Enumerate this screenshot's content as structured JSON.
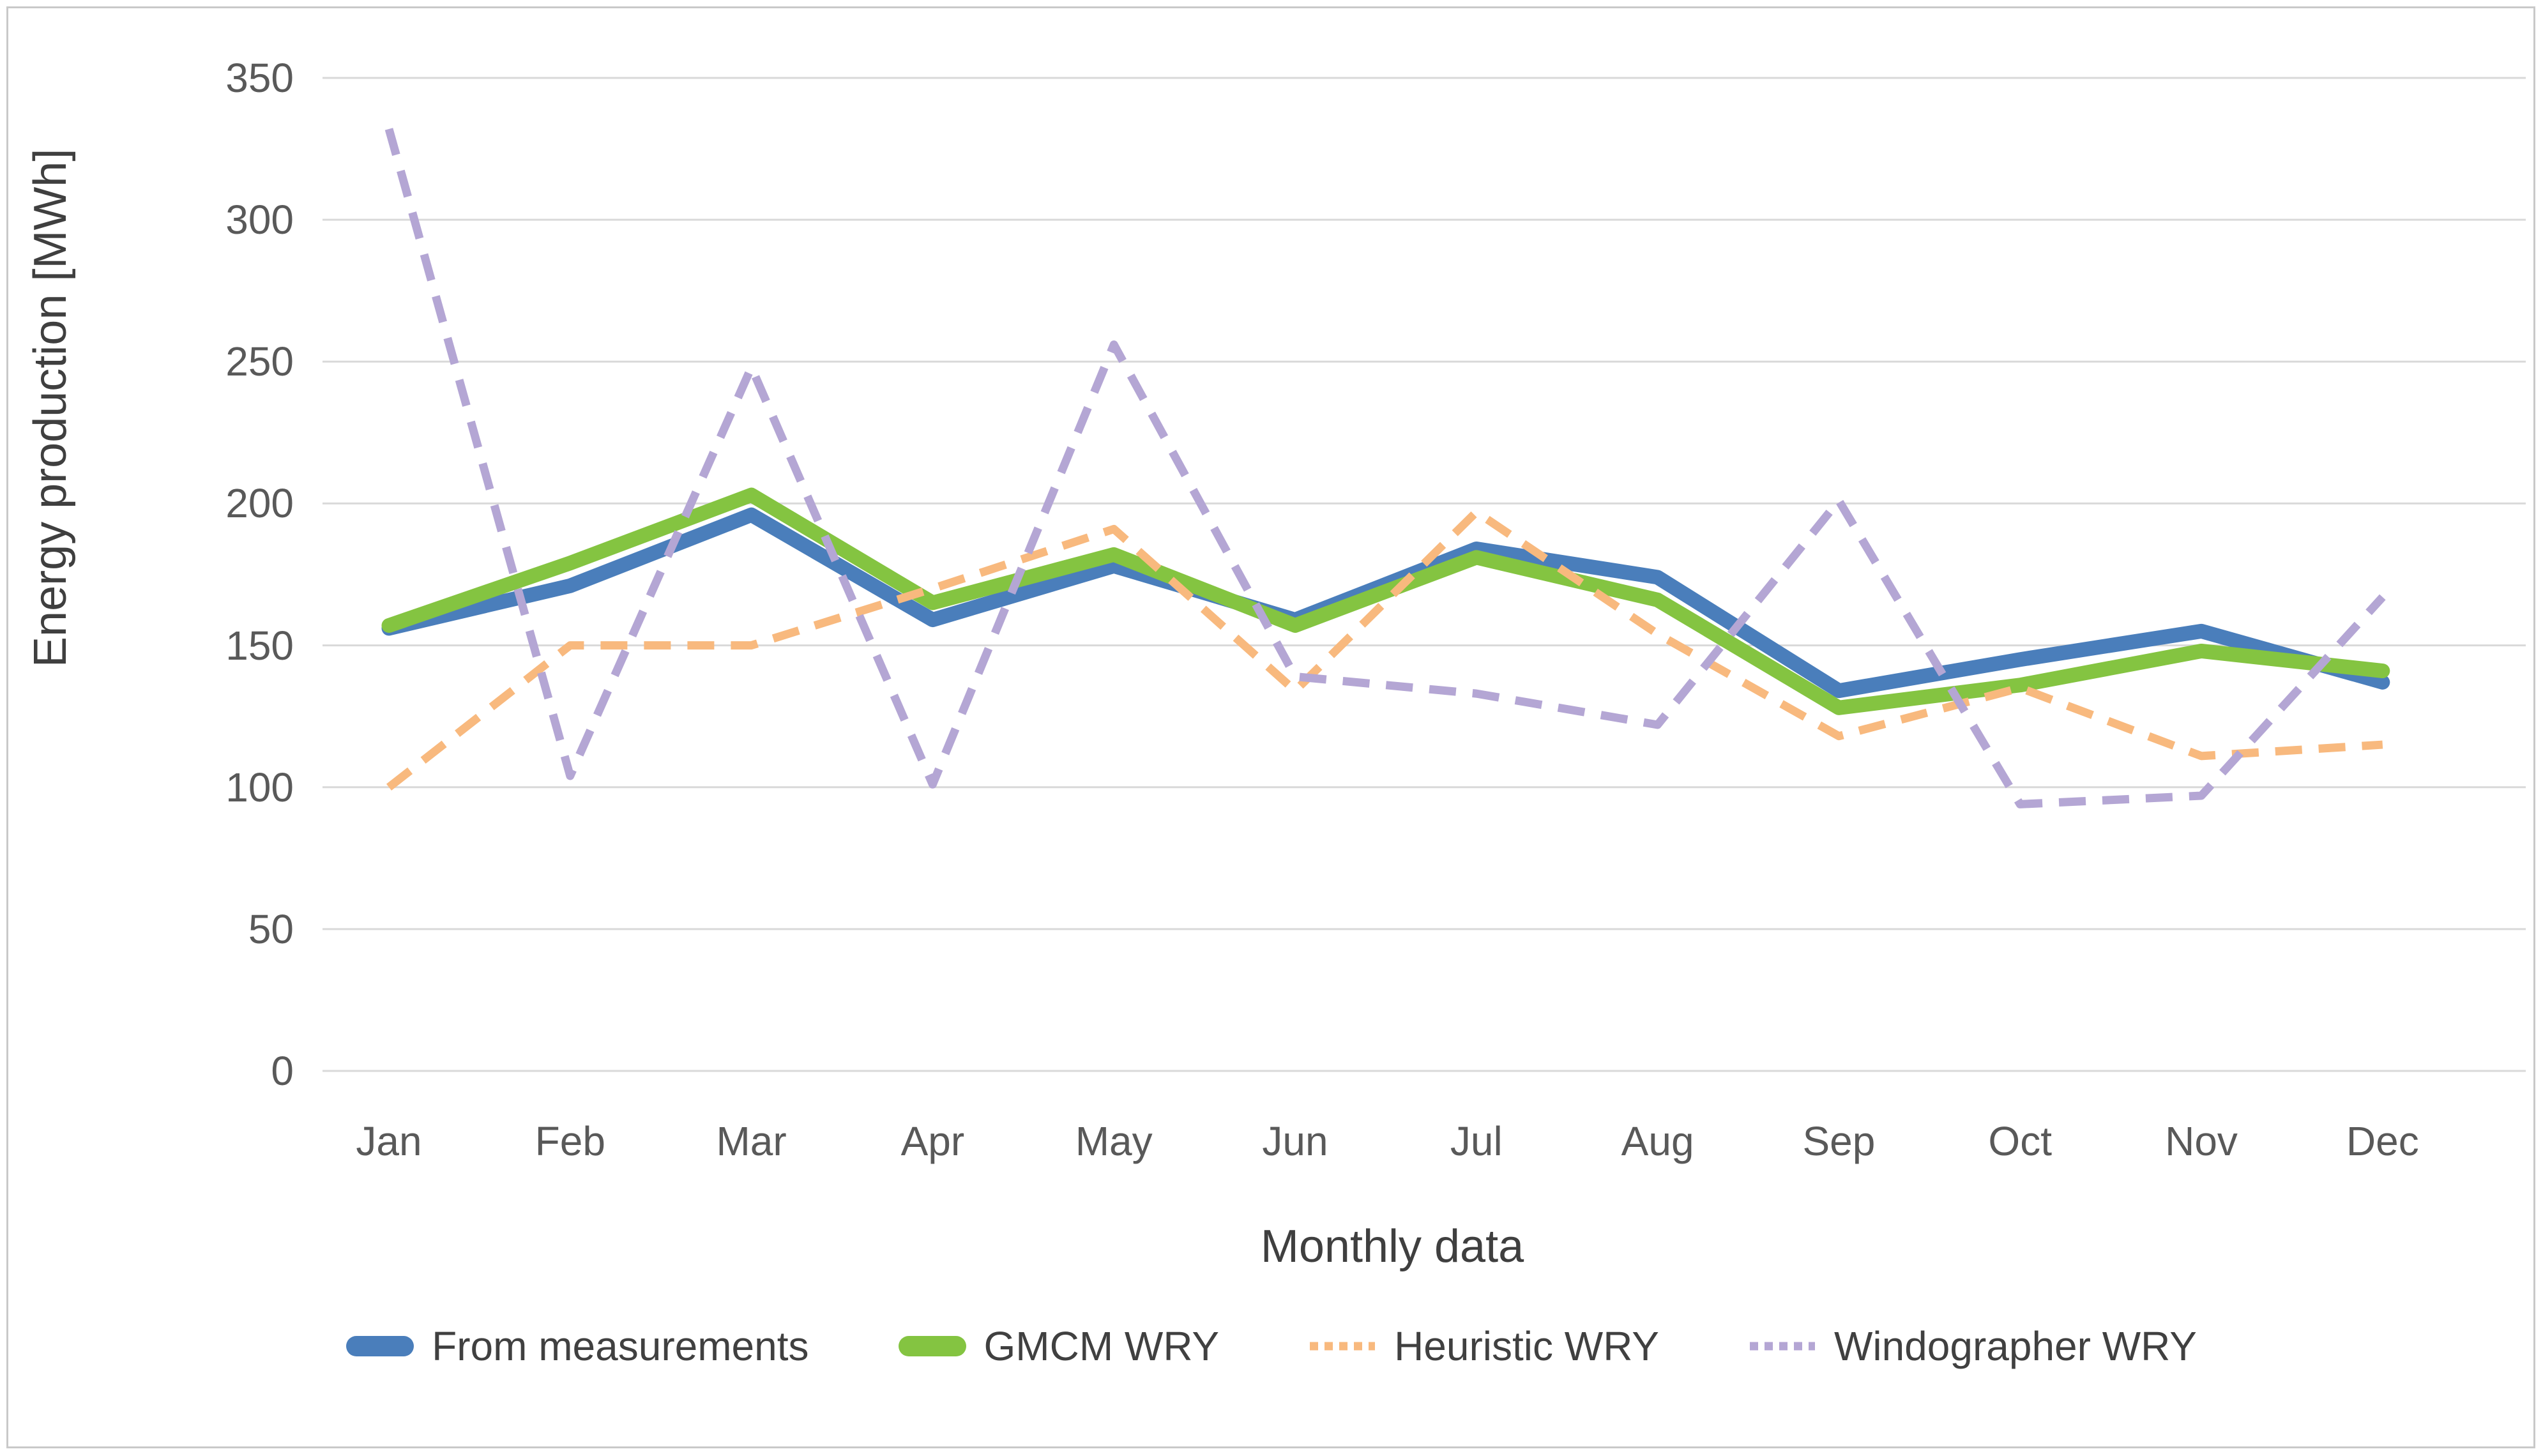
{
  "chart_data": {
    "type": "line",
    "title": "",
    "xlabel": "Monthly data",
    "ylabel": "Energy production [MWh]",
    "categories": [
      "Jan",
      "Feb",
      "Mar",
      "Apr",
      "May",
      "Jun",
      "Jul",
      "Aug",
      "Sep",
      "Oct",
      "Nov",
      "Dec"
    ],
    "series": [
      {
        "name": "From measurements",
        "color": "#4a7ebb",
        "line_style": "solid",
        "values": [
          156,
          171,
          196,
          159,
          178,
          159,
          184,
          174,
          134,
          145,
          155,
          137
        ]
      },
      {
        "name": "GMCM WRY",
        "color": "#84c441",
        "line_style": "solid",
        "values": [
          157,
          179,
          203,
          165,
          182,
          157,
          181,
          166,
          128,
          136,
          148,
          141
        ]
      },
      {
        "name": "Heuristic WRY",
        "color": "#f8b97e",
        "line_style": "dashed",
        "values": [
          100,
          150,
          150,
          170,
          191,
          134,
          197,
          154,
          118,
          135,
          111,
          115
        ]
      },
      {
        "name": "Windographer WRY",
        "color": "#b4a6d4",
        "line_style": "dashed",
        "values": [
          332,
          104,
          248,
          101,
          256,
          139,
          133,
          122,
          201,
          94,
          97,
          167
        ]
      }
    ],
    "ylim": [
      0,
      350
    ],
    "y_ticks": [
      350,
      300,
      250,
      200,
      150,
      100,
      50,
      0
    ],
    "grid": true,
    "gridline_color": "#d9d9d9",
    "tick_label_color": "#595959",
    "axis_title_color": "#3f3f3f",
    "legend_position": "bottom"
  }
}
